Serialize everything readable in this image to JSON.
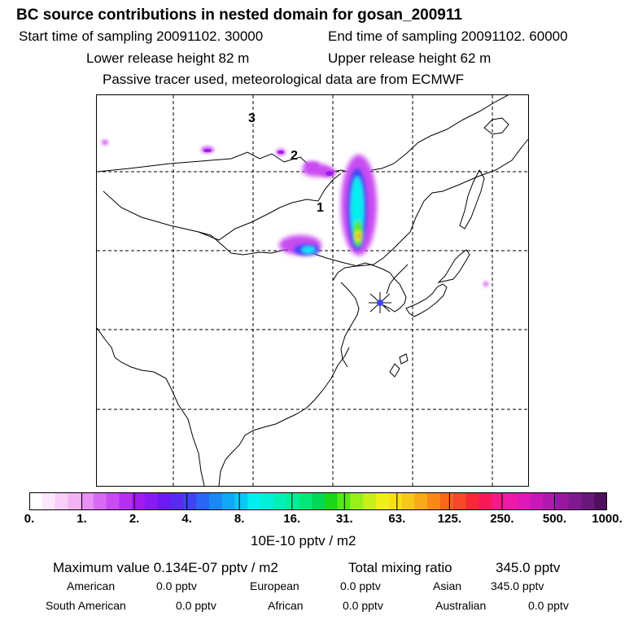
{
  "header": {
    "title": "BC  source contributions in nested domain for gosan_200911",
    "start_label": "Start time of sampling 20091102. 30000",
    "end_label": "End time of sampling 20091102. 60000",
    "lower_label": "Lower release height   82 m",
    "upper_label": "Upper release height   62 m",
    "tracer_label": "Passive tracer used, meteorological data are from ECMWF"
  },
  "chart_data": {
    "type": "heatmap",
    "map_labels": [
      "1",
      "2",
      "3"
    ],
    "colorbar": {
      "ticks": [
        "0.",
        "1.",
        "2.",
        "4.",
        "8.",
        "16.",
        "31.",
        "63.",
        "125.",
        "250.",
        "500.",
        "1000."
      ],
      "colors": [
        "#ffffff",
        "#fde8fd",
        "#f8cff8",
        "#f2b3f5",
        "#e890f5",
        "#d86bf5",
        "#c94cf2",
        "#b530ee",
        "#9f1aee",
        "#8a1af5",
        "#6c1af5",
        "#5a2af5",
        "#3f44f5",
        "#2a66f5",
        "#1a88f5",
        "#10a8f5",
        "#08c8f5",
        "#00f0f0",
        "#00f0d8",
        "#00f0b8",
        "#00f098",
        "#00e878",
        "#00d858",
        "#18d818",
        "#58e818",
        "#98f018",
        "#c8f018",
        "#f0f018",
        "#f8e018",
        "#f8c818",
        "#f8a818",
        "#f88818",
        "#f86818",
        "#f84828",
        "#f82838",
        "#f81858",
        "#f81888",
        "#f018a8",
        "#e018b8",
        "#c818b8",
        "#b018b0",
        "#9818a0",
        "#801890",
        "#681878",
        "#501060"
      ],
      "unit_label": "10E-10 pptv / m2"
    },
    "summary": {
      "max_label": "Maximum value  0.134E-07 pptv / m2",
      "total_label": "Total mixing ratio",
      "total_value": "345.0 pptv"
    },
    "regions": [
      {
        "name": "American",
        "value": "0.0 pptv"
      },
      {
        "name": "European",
        "value": "0.0 pptv"
      },
      {
        "name": "Asian",
        "value": "345.0 pptv"
      },
      {
        "name": "South American",
        "value": "0.0 pptv"
      },
      {
        "name": "African",
        "value": "0.0 pptv"
      },
      {
        "name": "Australian",
        "value": "0.0 pptv"
      }
    ]
  }
}
